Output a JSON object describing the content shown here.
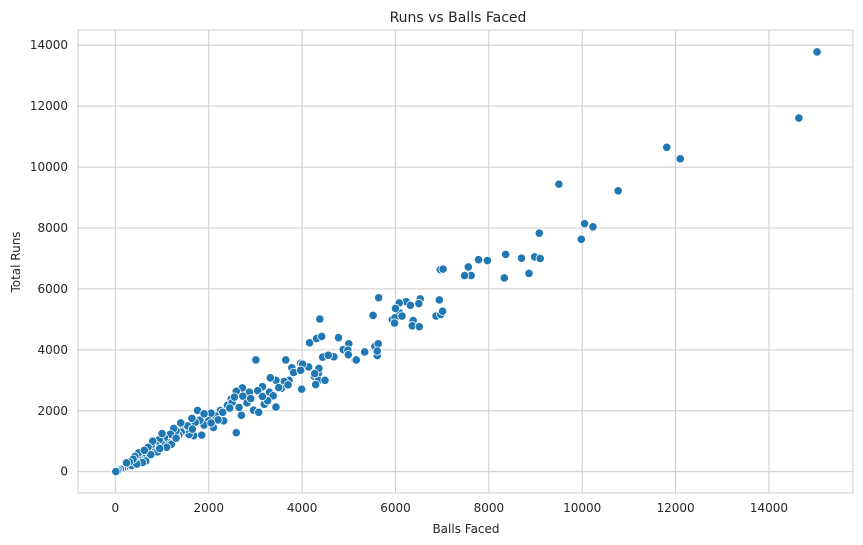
{
  "chart_data": {
    "type": "scatter",
    "title": "Runs vs Balls Faced",
    "xlabel": "Balls Faced",
    "ylabel": "Total Runs",
    "xlim": [
      -800,
      15800
    ],
    "ylim": [
      -700,
      14500
    ],
    "xticks": [
      0,
      2000,
      4000,
      6000,
      8000,
      10000,
      12000,
      14000
    ],
    "yticks": [
      0,
      2000,
      4000,
      6000,
      8000,
      10000,
      12000,
      14000
    ],
    "grid": true,
    "marker_color": "#1f77b4",
    "points": [
      [
        15030,
        13780
      ],
      [
        14640,
        11610
      ],
      [
        11810,
        10650
      ],
      [
        12100,
        10270
      ],
      [
        10770,
        9220
      ],
      [
        9500,
        9440
      ],
      [
        9080,
        7830
      ],
      [
        10050,
        8140
      ],
      [
        10230,
        8040
      ],
      [
        9980,
        7630
      ],
      [
        8980,
        7050
      ],
      [
        9100,
        7000
      ],
      [
        8360,
        7130
      ],
      [
        8700,
        7010
      ],
      [
        8860,
        6510
      ],
      [
        8330,
        6360
      ],
      [
        7970,
        6930
      ],
      [
        7780,
        6960
      ],
      [
        7620,
        6440
      ],
      [
        7560,
        6720
      ],
      [
        7480,
        6440
      ],
      [
        6960,
        6630
      ],
      [
        7020,
        6650
      ],
      [
        6940,
        5640
      ],
      [
        6530,
        5670
      ],
      [
        5640,
        5710
      ],
      [
        6230,
        5580
      ],
      [
        6080,
        5540
      ],
      [
        6320,
        5460
      ],
      [
        6090,
        5210
      ],
      [
        6500,
        5520
      ],
      [
        6000,
        5360
      ],
      [
        6870,
        5110
      ],
      [
        6970,
        5160
      ],
      [
        7010,
        5270
      ],
      [
        6380,
        4960
      ],
      [
        6360,
        4790
      ],
      [
        6510,
        4760
      ],
      [
        5930,
        4990
      ],
      [
        5990,
        5050
      ],
      [
        5980,
        4880
      ],
      [
        6140,
        5110
      ],
      [
        5520,
        5130
      ],
      [
        4380,
        5010
      ],
      [
        4160,
        4230
      ],
      [
        4310,
        4370
      ],
      [
        4420,
        4440
      ],
      [
        4780,
        4400
      ],
      [
        4680,
        3770
      ],
      [
        4880,
        4010
      ],
      [
        5000,
        4200
      ],
      [
        4980,
        3990
      ],
      [
        4990,
        3840
      ],
      [
        5140,
        3660
      ],
      [
        5160,
        3670
      ],
      [
        5340,
        3930
      ],
      [
        5560,
        4110
      ],
      [
        5630,
        4200
      ],
      [
        5610,
        3810
      ],
      [
        5610,
        3960
      ],
      [
        4440,
        3760
      ],
      [
        4560,
        3820
      ],
      [
        4140,
        3440
      ],
      [
        3010,
        3670
      ],
      [
        3650,
        3670
      ],
      [
        3780,
        3410
      ],
      [
        3970,
        3560
      ],
      [
        4010,
        3530
      ],
      [
        3720,
        3000
      ],
      [
        3820,
        3260
      ],
      [
        3620,
        2960
      ],
      [
        3970,
        3330
      ],
      [
        3990,
        2710
      ],
      [
        4260,
        3130
      ],
      [
        4350,
        3230
      ],
      [
        4360,
        3390
      ],
      [
        4350,
        3000
      ],
      [
        4490,
        3000
      ],
      [
        4290,
        2860
      ],
      [
        4270,
        3220
      ],
      [
        3440,
        3000
      ],
      [
        3300,
        2610
      ],
      [
        3380,
        2490
      ],
      [
        3440,
        2120
      ],
      [
        3560,
        2740
      ],
      [
        3320,
        3080
      ],
      [
        3150,
        2790
      ],
      [
        3190,
        2210
      ],
      [
        3260,
        2330
      ],
      [
        3050,
        2660
      ],
      [
        2960,
        2020
      ],
      [
        3070,
        1950
      ],
      [
        2870,
        2610
      ],
      [
        2720,
        2750
      ],
      [
        2730,
        2480
      ],
      [
        2820,
        2260
      ],
      [
        2650,
        2110
      ],
      [
        2590,
        2640
      ],
      [
        2480,
        2380
      ],
      [
        2400,
        2180
      ],
      [
        2500,
        2270
      ],
      [
        2590,
        1280
      ],
      [
        2320,
        1670
      ],
      [
        2250,
        2010
      ],
      [
        2150,
        1830
      ],
      [
        2050,
        1920
      ],
      [
        2000,
        1670
      ],
      [
        1900,
        1530
      ],
      [
        1810,
        1690
      ],
      [
        1760,
        2010
      ],
      [
        1710,
        1620
      ],
      [
        1680,
        1180
      ],
      [
        1580,
        1220
      ],
      [
        1640,
        1750
      ],
      [
        1510,
        1390
      ],
      [
        1470,
        1470
      ],
      [
        1410,
        1300
      ],
      [
        1360,
        1200
      ],
      [
        1310,
        1150
      ],
      [
        1300,
        1340
      ],
      [
        1250,
        1420
      ],
      [
        1180,
        1230
      ],
      [
        1120,
        960
      ],
      [
        1050,
        1110
      ],
      [
        980,
        950
      ],
      [
        940,
        1050
      ],
      [
        870,
        870
      ],
      [
        820,
        710
      ],
      [
        780,
        900
      ],
      [
        720,
        610
      ],
      [
        680,
        720
      ],
      [
        640,
        580
      ],
      [
        600,
        500
      ],
      [
        560,
        520
      ],
      [
        530,
        410
      ],
      [
        480,
        450
      ],
      [
        440,
        350
      ],
      [
        400,
        300
      ],
      [
        360,
        340
      ],
      [
        310,
        250
      ],
      [
        270,
        220
      ],
      [
        230,
        160
      ],
      [
        190,
        130
      ],
      [
        150,
        100
      ],
      [
        110,
        80
      ],
      [
        70,
        50
      ],
      [
        40,
        20
      ],
      [
        10,
        5
      ],
      [
        1900,
        1900
      ],
      [
        2100,
        1450
      ],
      [
        2300,
        1950
      ],
      [
        2450,
        2090
      ],
      [
        2700,
        1850
      ],
      [
        2900,
        2400
      ],
      [
        3150,
        2470
      ],
      [
        3500,
        2760
      ],
      [
        3700,
        2850
      ],
      [
        1550,
        1500
      ],
      [
        1400,
        1600
      ],
      [
        1200,
        900
      ],
      [
        1000,
        1250
      ],
      [
        900,
        650
      ],
      [
        800,
        1000
      ],
      [
        700,
        800
      ],
      [
        650,
        350
      ],
      [
        500,
        620
      ],
      [
        420,
        500
      ],
      [
        350,
        200
      ],
      [
        1650,
        1400
      ],
      [
        1850,
        1200
      ],
      [
        2200,
        1700
      ],
      [
        2550,
        2450
      ],
      [
        2050,
        1600
      ],
      [
        1300,
        1100
      ],
      [
        1100,
        800
      ],
      [
        950,
        760
      ],
      [
        760,
        560
      ],
      [
        620,
        700
      ],
      [
        580,
        300
      ],
      [
        460,
        250
      ],
      [
        380,
        410
      ],
      [
        300,
        320
      ],
      [
        240,
        290
      ]
    ]
  }
}
